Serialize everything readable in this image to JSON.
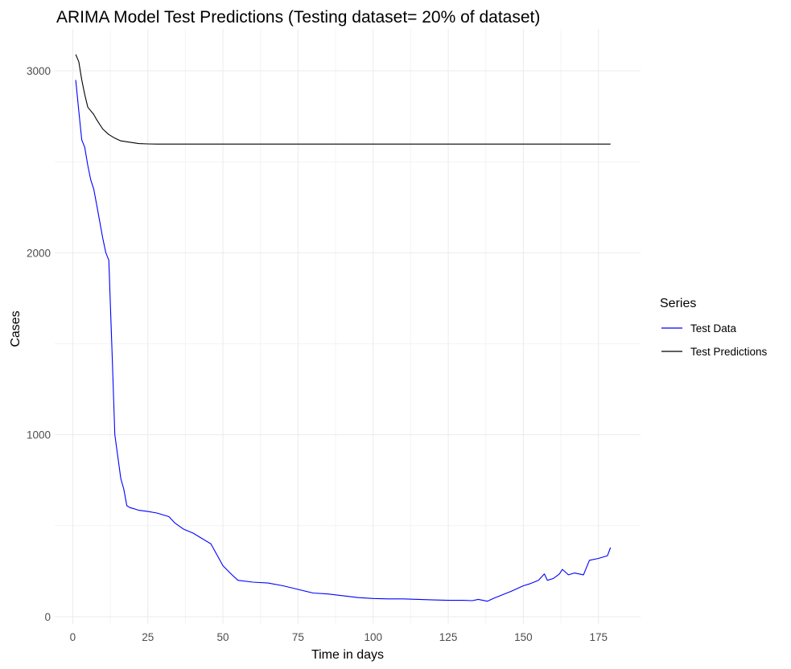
{
  "chart_data": {
    "type": "line",
    "title": "ARIMA Model Test Predictions (Testing dataset= 20% of dataset)",
    "xlabel": "Time in days",
    "ylabel": "Cases",
    "xlim": [
      -6,
      189
    ],
    "ylim": [
      -40,
      3230
    ],
    "x_ticks": [
      0,
      25,
      50,
      75,
      100,
      125,
      150,
      175
    ],
    "y_ticks": [
      0,
      1000,
      2000,
      3000
    ],
    "grid": true,
    "legend": {
      "title": "Series",
      "placement": "right"
    },
    "series": [
      {
        "name": "Test Data",
        "color": "#0000ff",
        "x": [
          1,
          2,
          3,
          4,
          5,
          6,
          7,
          8,
          9,
          10,
          11,
          12,
          13,
          14,
          15,
          16,
          17,
          18,
          19,
          20,
          21,
          22,
          25,
          28,
          32,
          34,
          37,
          40,
          43,
          46,
          50,
          53,
          55,
          60,
          65,
          70,
          75,
          80,
          85,
          90,
          95,
          100,
          105,
          110,
          115,
          120,
          125,
          130,
          133,
          135,
          138,
          140,
          143,
          146,
          150,
          152,
          155,
          157,
          158,
          160,
          162,
          163,
          165,
          167,
          170,
          172,
          175,
          178,
          179
        ],
        "y": [
          2950,
          2780,
          2620,
          2580,
          2480,
          2400,
          2350,
          2260,
          2170,
          2080,
          2000,
          1960,
          1500,
          1000,
          880,
          760,
          700,
          610,
          600,
          595,
          590,
          585,
          578,
          570,
          550,
          515,
          480,
          460,
          430,
          400,
          280,
          230,
          200,
          190,
          185,
          170,
          150,
          130,
          125,
          115,
          105,
          100,
          98,
          98,
          95,
          92,
          90,
          90,
          88,
          95,
          85,
          100,
          120,
          140,
          170,
          180,
          200,
          235,
          200,
          210,
          235,
          260,
          230,
          240,
          230,
          310,
          320,
          335,
          380
        ]
      },
      {
        "name": "Test Predictions",
        "color": "#000000",
        "x": [
          1,
          2,
          3,
          4,
          5,
          6,
          7,
          8,
          10,
          12,
          14,
          16,
          18,
          20,
          22,
          25,
          28,
          32,
          40,
          60,
          100,
          150,
          179
        ],
        "y": [
          3090,
          3050,
          2950,
          2870,
          2800,
          2780,
          2760,
          2730,
          2680,
          2650,
          2630,
          2615,
          2610,
          2605,
          2600,
          2598,
          2597,
          2597,
          2597,
          2597,
          2597,
          2597,
          2597
        ]
      }
    ]
  }
}
